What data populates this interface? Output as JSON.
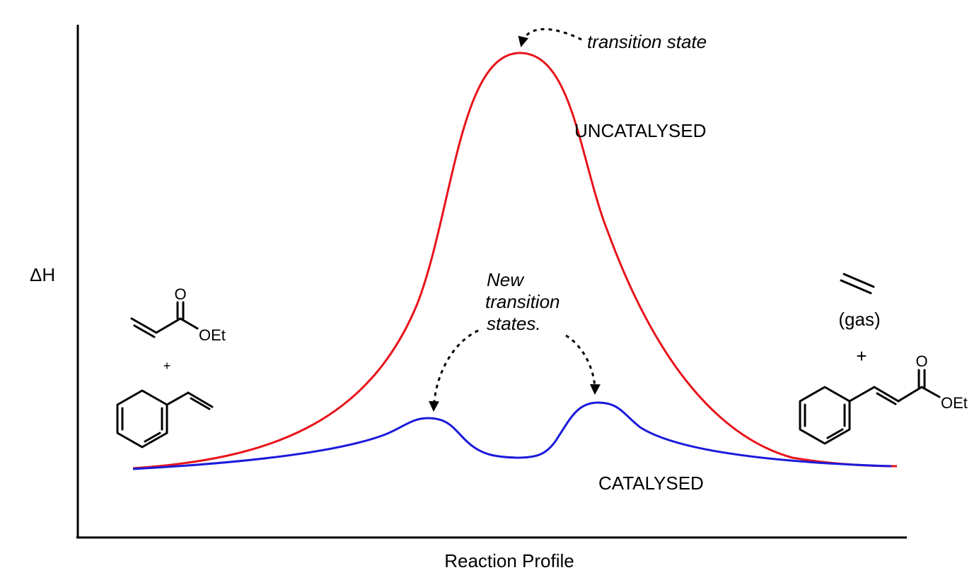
{
  "axes": {
    "y_label": "ΔH",
    "x_label": "Reaction Profile"
  },
  "curves": {
    "uncatalysed": {
      "label": "UNCATALYSED",
      "color": "#e8141b"
    },
    "catalysed": {
      "label": "CATALYSED",
      "color": "#1a1adb"
    }
  },
  "annotations": {
    "transition_state": "transition state",
    "new_ts_line1": "New",
    "new_ts_line2": "transition",
    "new_ts_line3": "states."
  },
  "reactants": {
    "acrylate_o": "O",
    "acrylate_oet": "OEt",
    "plus": "+"
  },
  "products": {
    "gas_label": "(gas)",
    "plus": "+",
    "cinnamate_o": "O",
    "cinnamate_oet": "OEt"
  }
}
